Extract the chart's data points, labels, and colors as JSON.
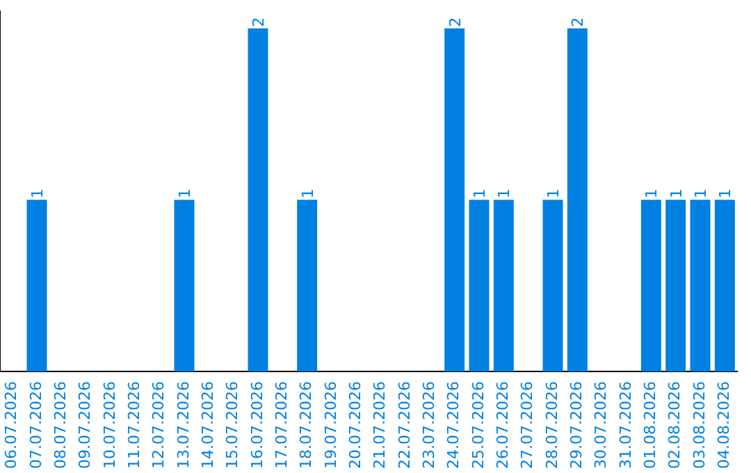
{
  "chart_data": {
    "type": "bar",
    "categories": [
      "06.07.2026",
      "07.07.2026",
      "08.07.2026",
      "09.07.2026",
      "10.07.2026",
      "11.07.2026",
      "12.07.2026",
      "13.07.2026",
      "14.07.2026",
      "15.07.2026",
      "16.07.2026",
      "17.07.2026",
      "18.07.2026",
      "19.07.2026",
      "20.07.2026",
      "21.07.2026",
      "22.07.2026",
      "23.07.2026",
      "24.07.2026",
      "25.07.2026",
      "26.07.2026",
      "27.07.2026",
      "28.07.2026",
      "29.07.2026",
      "30.07.2026",
      "31.07.2026",
      "01.08.2026",
      "02.08.2026",
      "03.08.2026",
      "04.08.2026"
    ],
    "values": [
      0,
      1,
      0,
      0,
      0,
      0,
      0,
      1,
      0,
      0,
      2,
      0,
      1,
      0,
      0,
      0,
      0,
      0,
      2,
      1,
      1,
      0,
      1,
      2,
      0,
      0,
      1,
      1,
      1,
      1
    ],
    "value_labels": [
      null,
      "1",
      null,
      null,
      null,
      null,
      null,
      "1",
      null,
      null,
      "2",
      null,
      "1",
      null,
      null,
      null,
      null,
      null,
      "2",
      "1",
      "1",
      null,
      "1",
      "2",
      null,
      null,
      "1",
      "1",
      "1",
      "1"
    ],
    "color": "#0080e0",
    "ylim": [
      0,
      2.1
    ],
    "tick_labels": "x",
    "grid": false,
    "legend": false
  }
}
